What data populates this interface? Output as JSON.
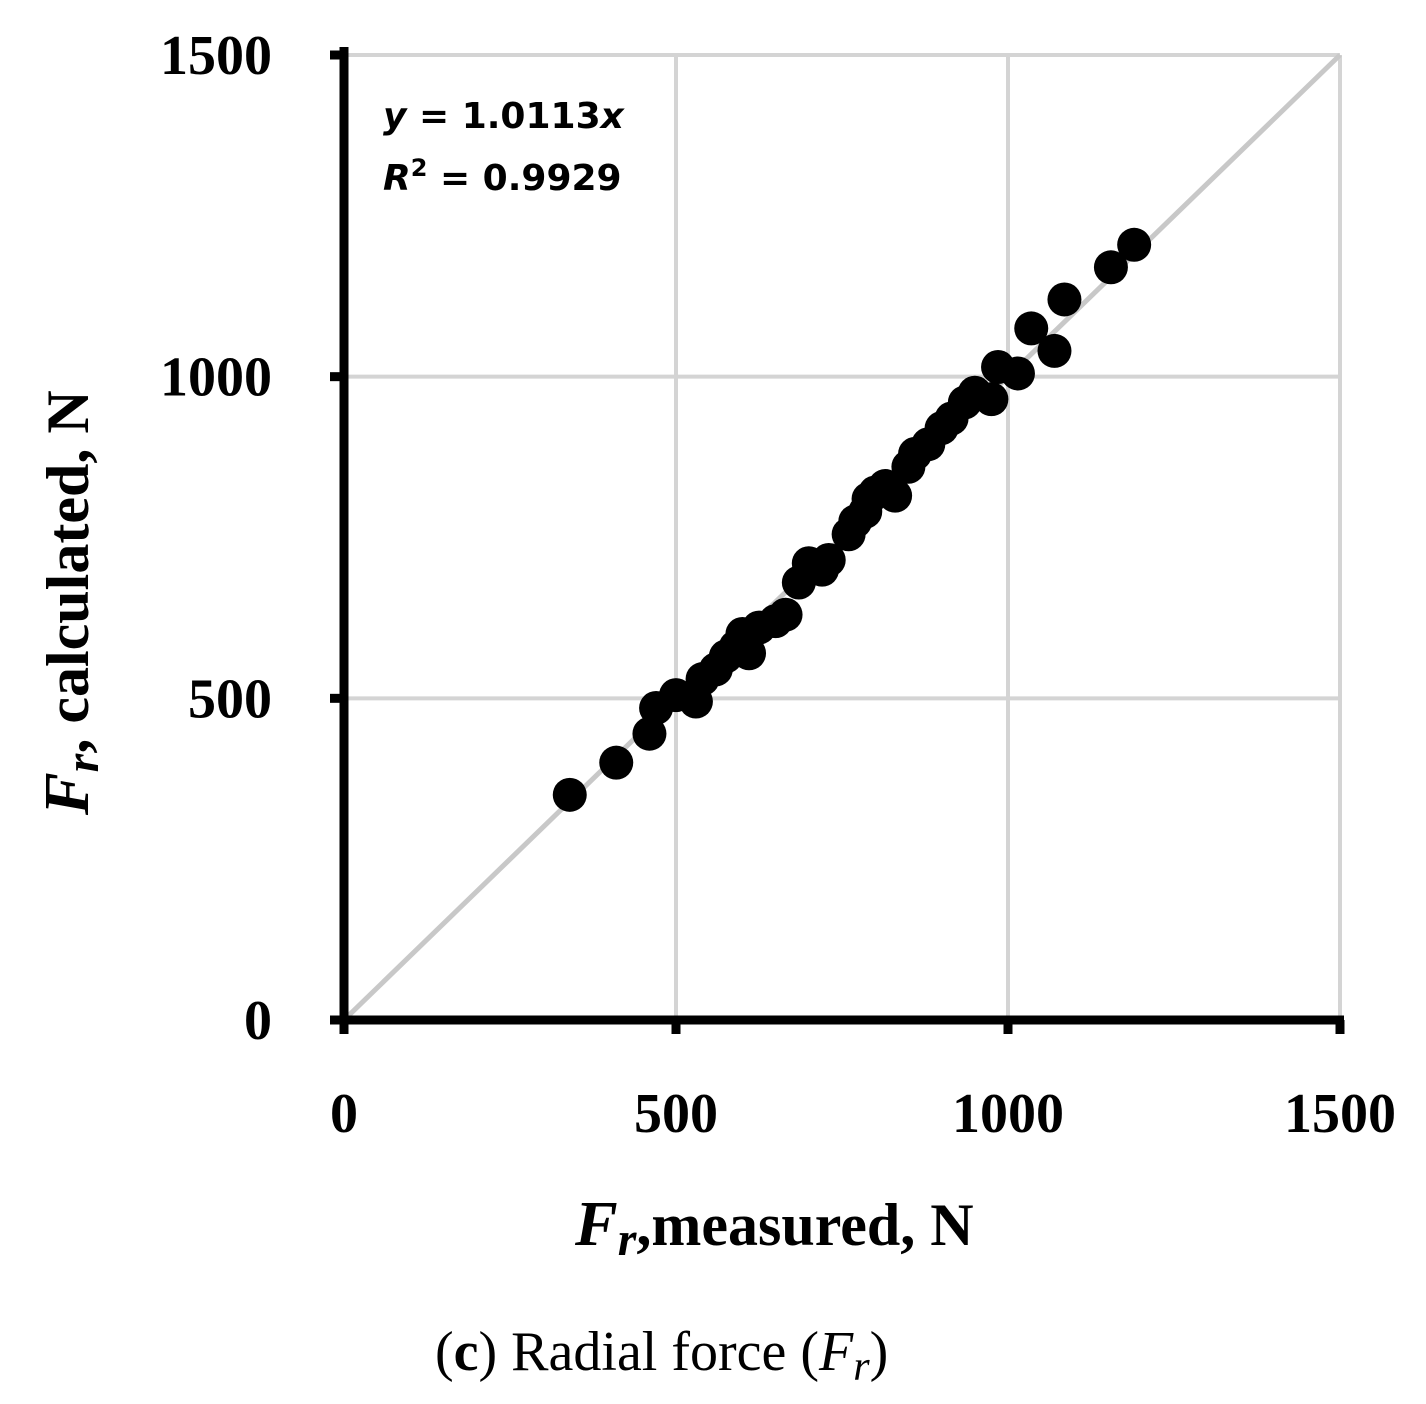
{
  "chart_data": {
    "type": "scatter",
    "xlim": [
      0,
      1500
    ],
    "ylim": [
      0,
      1500
    ],
    "x_ticks": [
      "0",
      "500",
      "1000",
      "1500"
    ],
    "y_ticks": [
      "0",
      "500",
      "1000",
      "1500"
    ],
    "grid": true,
    "reference_line": "y = x",
    "xlabel": {
      "symbol": "F",
      "subscript": "r",
      "text": "measured, N"
    },
    "ylabel": {
      "symbol": "F",
      "subscript": "r",
      "text": "calculated, N"
    },
    "annotation": {
      "equation_var": "y",
      "equation_rest": " = 1.0113",
      "equation_x": "x",
      "r2_var": "R",
      "r2_sup": "2",
      "r2_rest": " = 0.9929"
    },
    "points": [
      {
        "x": 340,
        "y": 350
      },
      {
        "x": 410,
        "y": 400
      },
      {
        "x": 460,
        "y": 445
      },
      {
        "x": 470,
        "y": 485
      },
      {
        "x": 500,
        "y": 505
      },
      {
        "x": 530,
        "y": 495
      },
      {
        "x": 540,
        "y": 530
      },
      {
        "x": 560,
        "y": 545
      },
      {
        "x": 575,
        "y": 565
      },
      {
        "x": 590,
        "y": 580
      },
      {
        "x": 600,
        "y": 600
      },
      {
        "x": 610,
        "y": 570
      },
      {
        "x": 625,
        "y": 610
      },
      {
        "x": 650,
        "y": 620
      },
      {
        "x": 665,
        "y": 630
      },
      {
        "x": 685,
        "y": 680
      },
      {
        "x": 700,
        "y": 710
      },
      {
        "x": 720,
        "y": 700
      },
      {
        "x": 730,
        "y": 715
      },
      {
        "x": 760,
        "y": 755
      },
      {
        "x": 770,
        "y": 775
      },
      {
        "x": 785,
        "y": 790
      },
      {
        "x": 790,
        "y": 810
      },
      {
        "x": 800,
        "y": 820
      },
      {
        "x": 815,
        "y": 830
      },
      {
        "x": 830,
        "y": 815
      },
      {
        "x": 850,
        "y": 860
      },
      {
        "x": 860,
        "y": 880
      },
      {
        "x": 880,
        "y": 895
      },
      {
        "x": 900,
        "y": 920
      },
      {
        "x": 915,
        "y": 935
      },
      {
        "x": 935,
        "y": 960
      },
      {
        "x": 950,
        "y": 975
      },
      {
        "x": 975,
        "y": 965
      },
      {
        "x": 985,
        "y": 1015
      },
      {
        "x": 1015,
        "y": 1005
      },
      {
        "x": 1035,
        "y": 1075
      },
      {
        "x": 1070,
        "y": 1040
      },
      {
        "x": 1085,
        "y": 1120
      },
      {
        "x": 1155,
        "y": 1170
      },
      {
        "x": 1190,
        "y": 1205
      }
    ]
  },
  "caption": {
    "open": "(",
    "letter": "c",
    "close": ")",
    "text": " Radial force (",
    "symbol": "F",
    "subscript": "r",
    "end": ")"
  }
}
